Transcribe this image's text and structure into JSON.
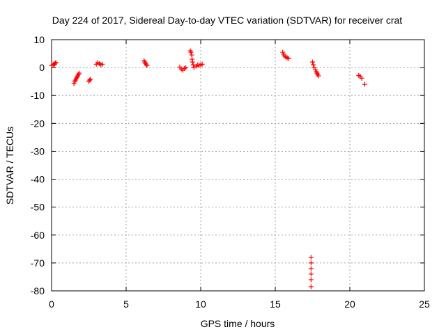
{
  "chart_data": {
    "type": "scatter",
    "title": "Day 224 of 2017, Sidereal Day-to-day VTEC variation (SDTVAR) for receiver crat",
    "xlabel": "GPS time / hours",
    "ylabel": "SDTVAR / TECUs",
    "xlim": [
      0,
      25
    ],
    "ylim": [
      -80,
      10
    ],
    "xticks": [
      0,
      5,
      10,
      15,
      20,
      25
    ],
    "yticks": [
      10,
      0,
      -10,
      -20,
      -30,
      -40,
      -50,
      -60,
      -70,
      -80
    ],
    "grid": true,
    "marker": "+",
    "marker_color": "#ff0000",
    "series": [
      {
        "name": "SDTVAR",
        "points": [
          [
            0.0,
            0.8
          ],
          [
            0.1,
            1.0
          ],
          [
            0.15,
            1.3
          ],
          [
            0.2,
            1.2
          ],
          [
            0.25,
            1.6
          ],
          [
            0.3,
            1.8
          ],
          [
            1.5,
            -5.8
          ],
          [
            1.55,
            -5.0
          ],
          [
            1.6,
            -4.5
          ],
          [
            1.65,
            -4.0
          ],
          [
            1.7,
            -3.5
          ],
          [
            1.75,
            -3.0
          ],
          [
            1.8,
            -2.5
          ],
          [
            1.85,
            -2.0
          ],
          [
            2.5,
            -5.0
          ],
          [
            2.55,
            -4.5
          ],
          [
            2.6,
            -4.2
          ],
          [
            3.0,
            1.2
          ],
          [
            3.1,
            1.8
          ],
          [
            3.2,
            1.4
          ],
          [
            3.3,
            1.0
          ],
          [
            3.4,
            1.2
          ],
          [
            6.2,
            2.5
          ],
          [
            6.25,
            2.0
          ],
          [
            6.3,
            1.5
          ],
          [
            6.35,
            1.0
          ],
          [
            6.4,
            0.8
          ],
          [
            8.6,
            0.2
          ],
          [
            8.7,
            -0.5
          ],
          [
            8.8,
            -1.0
          ],
          [
            8.9,
            -0.3
          ],
          [
            9.0,
            0.0
          ],
          [
            9.3,
            6.0
          ],
          [
            9.35,
            5.5
          ],
          [
            9.4,
            4.5
          ],
          [
            9.42,
            3.0
          ],
          [
            9.45,
            2.0
          ],
          [
            9.5,
            1.0
          ],
          [
            9.55,
            0.0
          ],
          [
            9.7,
            0.5
          ],
          [
            9.8,
            1.0
          ],
          [
            9.9,
            0.8
          ],
          [
            10.0,
            1.0
          ],
          [
            10.1,
            1.2
          ],
          [
            15.5,
            5.5
          ],
          [
            15.55,
            4.8
          ],
          [
            15.6,
            4.2
          ],
          [
            15.7,
            3.8
          ],
          [
            15.8,
            3.5
          ],
          [
            15.9,
            3.2
          ],
          [
            17.4,
            -68.0
          ],
          [
            17.4,
            -70.0
          ],
          [
            17.4,
            -72.0
          ],
          [
            17.4,
            -74.0
          ],
          [
            17.4,
            -76.0
          ],
          [
            17.4,
            -78.5
          ],
          [
            17.5,
            2.0
          ],
          [
            17.55,
            1.0
          ],
          [
            17.6,
            0.0
          ],
          [
            17.7,
            -0.8
          ],
          [
            17.75,
            -1.5
          ],
          [
            17.8,
            -2.0
          ],
          [
            17.85,
            -2.5
          ],
          [
            17.9,
            -3.0
          ],
          [
            20.6,
            -2.8
          ],
          [
            20.7,
            -3.2
          ],
          [
            20.8,
            -3.8
          ],
          [
            21.0,
            -6.0
          ]
        ]
      }
    ]
  }
}
